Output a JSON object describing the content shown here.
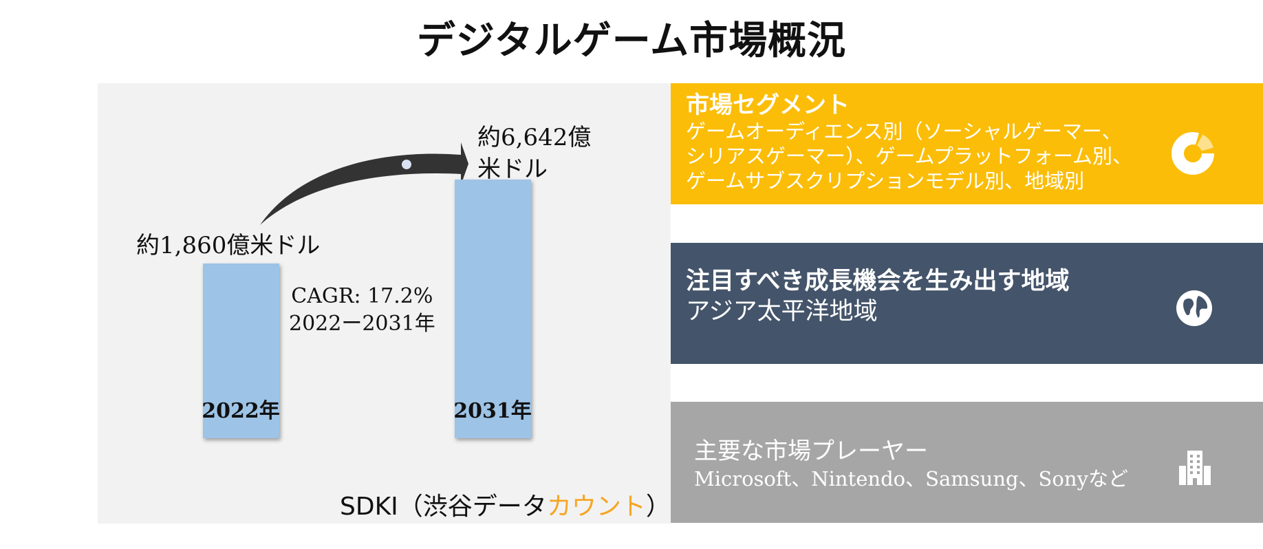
{
  "title": "デジタルゲーム市場概況",
  "chart_data": {
    "type": "bar",
    "categories": [
      "2022年",
      "2031年"
    ],
    "values": [
      1860,
      6642
    ],
    "value_labels": [
      "約1,860億米ドル",
      "約6,642億米ドル"
    ],
    "unit": "億米ドル",
    "cagr_label": "CAGR: 17.2%",
    "cagr_period": "2022ー2031年",
    "bar_color": "#9dc3e6",
    "arrow_color": "#333333"
  },
  "credit": {
    "prefix": "SDKI（渋谷データ",
    "accent": "カウント",
    "suffix": "）"
  },
  "panels": [
    {
      "heading": "市場セグメント",
      "lines": [
        "ゲームオーディエンス別（ソーシャルゲーマー、",
        "シリアスゲーマー）、ゲームプラットフォーム別、",
        "ゲームサブスクリプションモデル別、地域別"
      ],
      "icon": "donut-chart-icon",
      "color": "#fbbd08"
    },
    {
      "heading": "注目すべき成長機会を生み出す地域",
      "lines": [
        "アジア太平洋地域"
      ],
      "icon": "globe-icon",
      "color": "#44546a"
    },
    {
      "heading": "主要な市場プレーヤー",
      "lines": [
        "Microsoft、Nintendo、Samsung、Sonyなど"
      ],
      "icon": "building-icon",
      "color": "#a6a6a6"
    }
  ]
}
